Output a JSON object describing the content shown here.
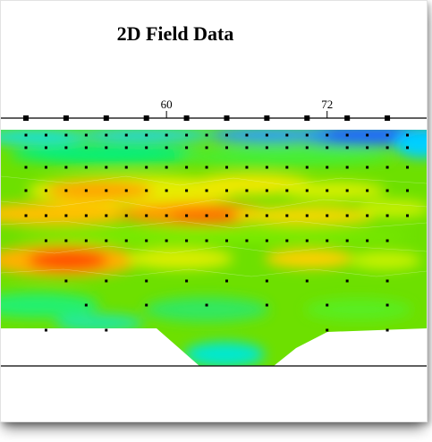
{
  "chart_data": {
    "type": "heatmap",
    "title": "2D Field Data",
    "xlabel": "",
    "ylabel": "",
    "x_tick_labels": [
      {
        "value": 60,
        "label": "60"
      },
      {
        "value": 72,
        "label": "72"
      }
    ],
    "xlim": [
      49.5,
      78.5
    ],
    "electrode_positions": [
      49.5,
      52.5,
      55.5,
      58.5,
      61.5,
      64.5,
      67.5,
      70.5,
      73.5,
      76.5
    ],
    "data_point_rows": [
      {
        "level": 1,
        "x": [
          49.5,
          51,
          52.5,
          54,
          55.5,
          57,
          58.5,
          60,
          61.5,
          63,
          64.5,
          66,
          67.5,
          69,
          70.5,
          72,
          73.5,
          75,
          76.5,
          78
        ]
      },
      {
        "level": 2,
        "x": [
          49.5,
          51,
          52.5,
          54,
          55.5,
          57,
          58.5,
          60,
          61.5,
          63,
          64.5,
          66,
          67.5,
          69,
          70.5,
          72,
          73.5,
          75,
          76.5,
          78
        ]
      },
      {
        "level": 3,
        "x": [
          49.5,
          51,
          52.5,
          54,
          55.5,
          57,
          58.5,
          60,
          61.5,
          63,
          64.5,
          66,
          67.5,
          69,
          70.5,
          72,
          73.5,
          75,
          76.5,
          78
        ]
      },
      {
        "level": 4,
        "x": [
          49.5,
          51,
          52.5,
          54,
          55.5,
          57,
          58.5,
          60,
          61.5,
          63,
          64.5,
          66,
          67.5,
          69,
          70.5,
          72,
          73.5,
          75,
          76.5,
          78
        ]
      },
      {
        "level": 5,
        "x": [
          49.5,
          51,
          52.5,
          54,
          55.5,
          57,
          58.5,
          60,
          61.5,
          63,
          64.5,
          66,
          67.5,
          69,
          70.5,
          72,
          73.5,
          75,
          76.5,
          78
        ]
      },
      {
        "level": 6,
        "x": [
          51,
          52.5,
          54,
          55.5,
          57,
          58.5,
          60,
          61.5,
          63,
          64.5,
          66,
          67.5,
          69,
          70.5,
          72,
          73.5,
          75,
          76.5
        ]
      },
      {
        "level": 7,
        "x": [
          52.5,
          55.5,
          58.5,
          61.5,
          64.5,
          67.5,
          70.5,
          73.5,
          76.5
        ]
      },
      {
        "level": 8,
        "x": [
          54,
          58.5,
          63,
          67.5,
          72,
          76.5
        ]
      },
      {
        "level": 9,
        "x": [
          51,
          55.5,
          72,
          76.5
        ]
      }
    ],
    "colorscale": [
      "#0000ff",
      "#00c8ff",
      "#00ff80",
      "#80ff00",
      "#e6f000",
      "#ff9600",
      "#ff3000"
    ],
    "grid": false,
    "legend": "none"
  }
}
